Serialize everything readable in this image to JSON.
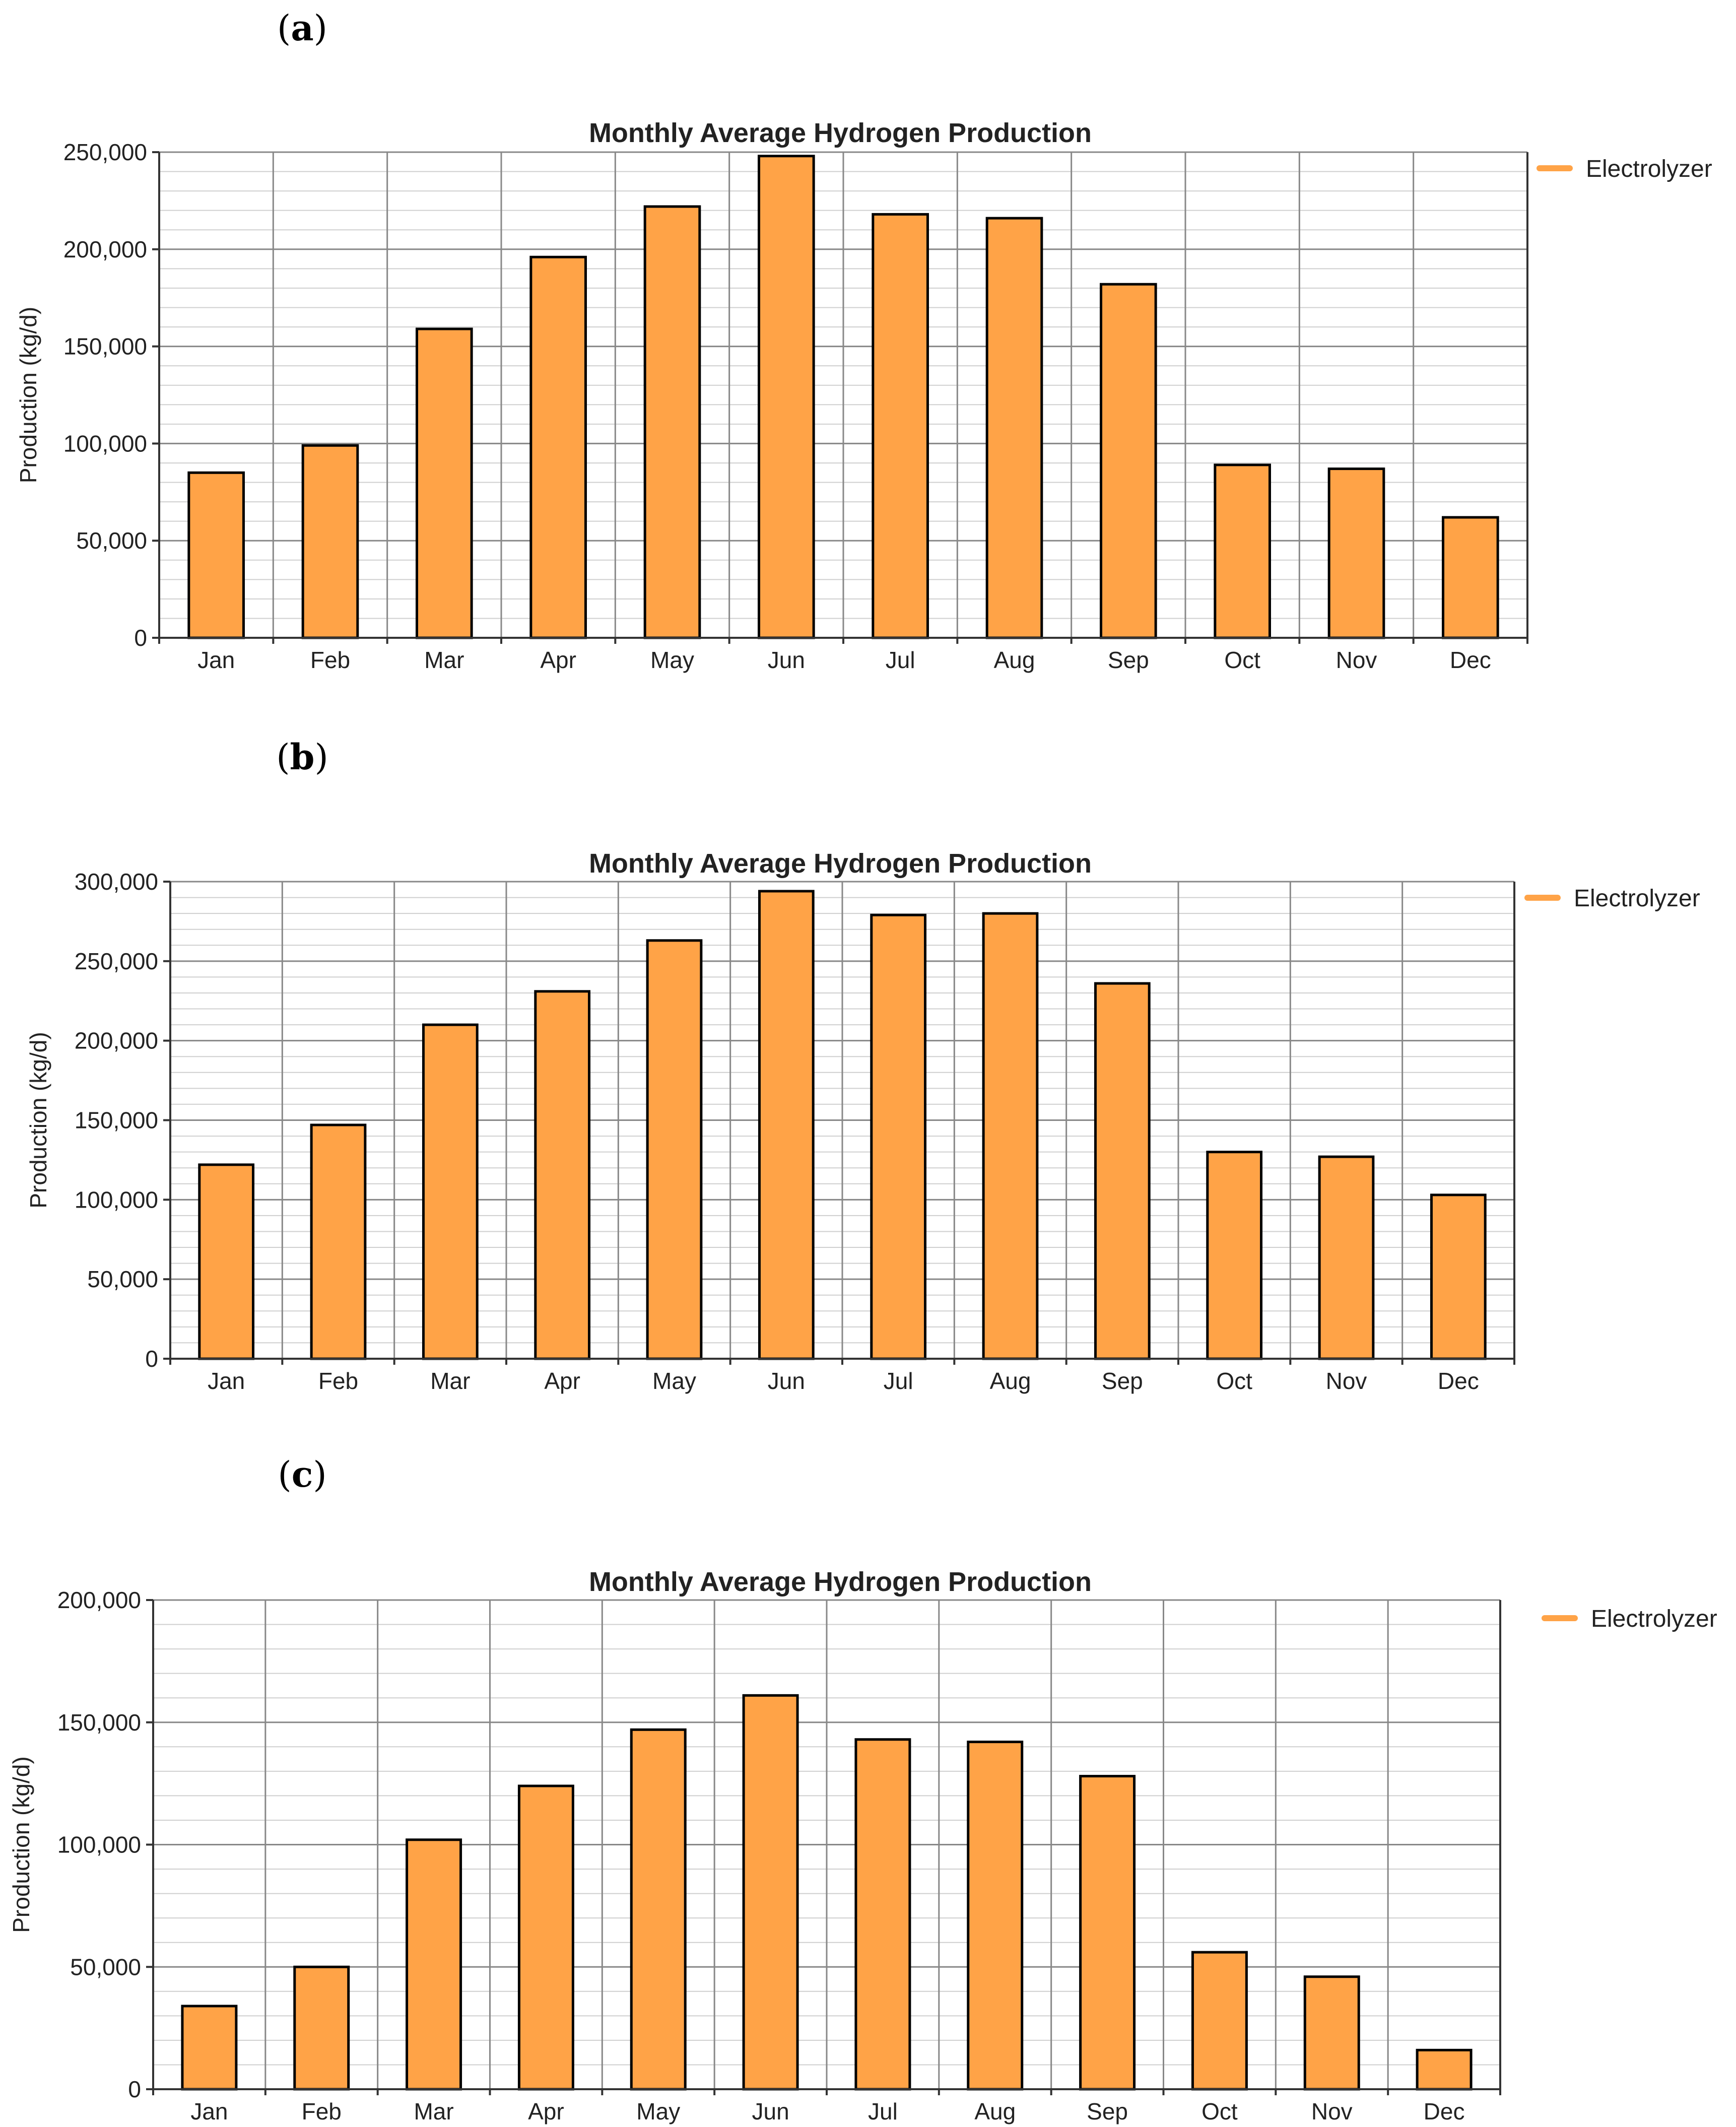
{
  "figure": {
    "panels": [
      "a",
      "b",
      "c"
    ]
  },
  "chart_data": [
    {
      "panel": "a",
      "type": "bar",
      "title": "Monthly Average Hydrogen Production",
      "xlabel": "",
      "ylabel": "Production (kg/d)",
      "categories": [
        "Jan",
        "Feb",
        "Mar",
        "Apr",
        "May",
        "Jun",
        "Jul",
        "Aug",
        "Sep",
        "Oct",
        "Nov",
        "Dec"
      ],
      "series": [
        {
          "name": "Electrolyzer",
          "color": "#ffa347",
          "values": [
            85000,
            99000,
            159000,
            196000,
            222000,
            248000,
            218000,
            216000,
            182000,
            89000,
            87000,
            62000
          ]
        }
      ],
      "ylim": [
        0,
        250000
      ],
      "yticks": [
        0,
        50000,
        100000,
        150000,
        200000,
        250000
      ],
      "ytick_labels": [
        "0",
        "50,000",
        "100,000",
        "150,000",
        "200,000",
        "250,000"
      ],
      "minor_per_major": 5,
      "grid": true,
      "legend_position": "right-top"
    },
    {
      "panel": "b",
      "type": "bar",
      "title": "Monthly Average Hydrogen Production",
      "xlabel": "",
      "ylabel": "Production (kg/d)",
      "categories": [
        "Jan",
        "Feb",
        "Mar",
        "Apr",
        "May",
        "Jun",
        "Jul",
        "Aug",
        "Sep",
        "Oct",
        "Nov",
        "Dec"
      ],
      "series": [
        {
          "name": "Electrolyzer",
          "color": "#ffa347",
          "values": [
            122000,
            147000,
            210000,
            231000,
            263000,
            294000,
            279000,
            280000,
            236000,
            130000,
            127000,
            103000
          ]
        }
      ],
      "ylim": [
        0,
        300000
      ],
      "yticks": [
        0,
        50000,
        100000,
        150000,
        200000,
        250000,
        300000
      ],
      "ytick_labels": [
        "0",
        "50,000",
        "100,000",
        "150,000",
        "200,000",
        "250,000",
        "300,000"
      ],
      "minor_per_major": 5,
      "grid": true,
      "legend_position": "right-top"
    },
    {
      "panel": "c",
      "type": "bar",
      "title": "Monthly Average Hydrogen Production",
      "xlabel": "",
      "ylabel": "Production (kg/d)",
      "categories": [
        "Jan",
        "Feb",
        "Mar",
        "Apr",
        "May",
        "Jun",
        "Jul",
        "Aug",
        "Sep",
        "Oct",
        "Nov",
        "Dec"
      ],
      "series": [
        {
          "name": "Electrolyzer",
          "color": "#ffa347",
          "values": [
            34000,
            50000,
            102000,
            124000,
            147000,
            161000,
            143000,
            142000,
            128000,
            56000,
            46000,
            16000
          ]
        }
      ],
      "ylim": [
        0,
        200000
      ],
      "yticks": [
        0,
        50000,
        100000,
        150000,
        200000
      ],
      "ytick_labels": [
        "0",
        "50,000",
        "100,000",
        "150,000",
        "200,000"
      ],
      "minor_per_major": 5,
      "grid": true,
      "legend_position": "right-top"
    }
  ]
}
